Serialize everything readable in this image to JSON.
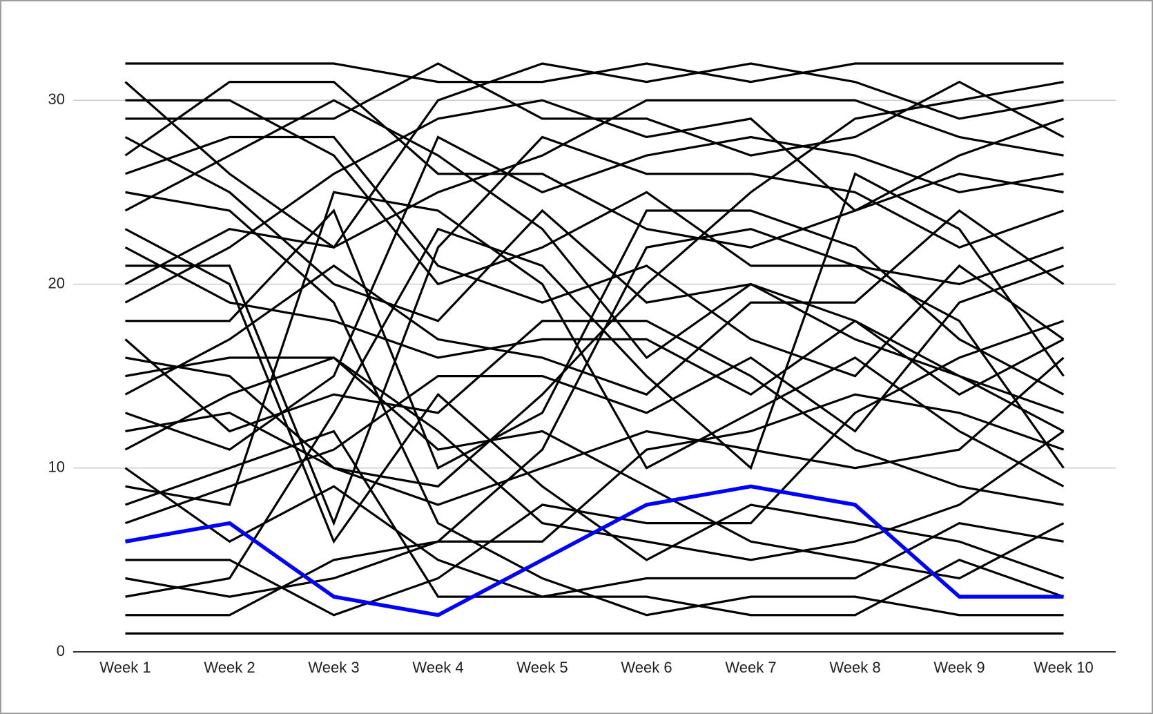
{
  "chart_data": {
    "type": "line",
    "categories": [
      "Week 1",
      "Week 2",
      "Week 3",
      "Week 4",
      "Week 5",
      "Week 6",
      "Week 7",
      "Week 8",
      "Week 9",
      "Week 10"
    ],
    "ylim": [
      0,
      32
    ],
    "yticks": [
      0,
      10,
      20,
      30
    ],
    "grid": true,
    "series": [
      {
        "color": "#000000",
        "values": [
          32,
          32,
          32,
          31,
          31,
          32,
          31,
          32,
          32,
          32
        ]
      },
      {
        "color": "#000000",
        "values": [
          31,
          26,
          22,
          30,
          32,
          31,
          32,
          31,
          29,
          30
        ]
      },
      {
        "color": "#000000",
        "values": [
          30,
          30,
          27,
          20,
          22,
          25,
          21,
          21,
          20,
          22
        ]
      },
      {
        "color": "#000000",
        "values": [
          29,
          29,
          29,
          32,
          29,
          29,
          27,
          28,
          31,
          28
        ]
      },
      {
        "color": "#000000",
        "values": [
          28,
          25,
          20,
          18,
          24,
          19,
          20,
          17,
          15,
          13
        ]
      },
      {
        "color": "#000000",
        "values": [
          27,
          31,
          31,
          26,
          26,
          23,
          22,
          24,
          27,
          29
        ]
      },
      {
        "color": "#000000",
        "values": [
          26,
          28,
          28,
          21,
          19,
          21,
          17,
          15,
          21,
          17
        ]
      },
      {
        "color": "#000000",
        "values": [
          25,
          24,
          19,
          7,
          4,
          2,
          3,
          3,
          2,
          2
        ]
      },
      {
        "color": "#000000",
        "values": [
          24,
          27,
          30,
          27,
          23,
          16,
          20,
          18,
          14,
          17
        ]
      },
      {
        "color": "#000000",
        "values": [
          23,
          20,
          6,
          14,
          9,
          5,
          8,
          7,
          6,
          4
        ]
      },
      {
        "color": "#000000",
        "values": [
          22,
          19,
          18,
          16,
          17,
          17,
          14,
          18,
          15,
          12
        ]
      },
      {
        "color": "#000000",
        "values": [
          21,
          21,
          7,
          22,
          28,
          26,
          26,
          25,
          22,
          24
        ]
      },
      {
        "color": "#000000",
        "values": [
          20,
          23,
          22,
          25,
          27,
          30,
          30,
          30,
          28,
          27
        ]
      },
      {
        "color": "#000000",
        "values": [
          19,
          22,
          26,
          29,
          30,
          28,
          29,
          24,
          26,
          25
        ]
      },
      {
        "color": "#000000",
        "values": [
          18,
          18,
          24,
          10,
          13,
          24,
          24,
          22,
          17,
          14
        ]
      },
      {
        "color": "#000000",
        "values": [
          17,
          12,
          14,
          13,
          18,
          18,
          15,
          11,
          9,
          8
        ]
      },
      {
        "color": "#000000",
        "values": [
          16,
          15,
          10,
          8,
          10,
          12,
          11,
          10,
          11,
          16
        ]
      },
      {
        "color": "#000000",
        "values": [
          15,
          16,
          16,
          11,
          12,
          9,
          6,
          5,
          4,
          7
        ]
      },
      {
        "color": "#000000",
        "values": [
          14,
          17,
          21,
          17,
          16,
          14,
          19,
          19,
          24,
          20
        ]
      },
      {
        "color": "#000000",
        "values": [
          13,
          11,
          15,
          28,
          25,
          27,
          28,
          27,
          25,
          26
        ]
      },
      {
        "color": "#000000",
        "values": [
          12,
          13,
          10,
          9,
          14,
          20,
          25,
          29,
          30,
          31
        ]
      },
      {
        "color": "#000000",
        "values": [
          11,
          14,
          16,
          12,
          7,
          6,
          5,
          6,
          8,
          12
        ]
      },
      {
        "color": "#000000",
        "values": [
          10,
          6,
          9,
          5,
          3,
          3,
          2,
          2,
          5,
          3
        ]
      },
      {
        "color": "#000000",
        "values": [
          9,
          8,
          25,
          24,
          20,
          10,
          13,
          16,
          12,
          9
        ]
      },
      {
        "color": "#000000",
        "values": [
          8,
          10,
          12,
          3,
          3,
          4,
          4,
          4,
          7,
          6
        ]
      },
      {
        "color": "#000000",
        "values": [
          7,
          9,
          11,
          15,
          15,
          13,
          16,
          12,
          19,
          21
        ]
      },
      {
        "color": "#000000",
        "values": [
          5,
          5,
          2,
          4,
          8,
          7,
          7,
          13,
          16,
          18
        ]
      },
      {
        "color": "#000000",
        "values": [
          4,
          3,
          4,
          6,
          6,
          11,
          12,
          14,
          13,
          11
        ]
      },
      {
        "color": "#000000",
        "values": [
          3,
          4,
          13,
          23,
          21,
          15,
          10,
          26,
          23,
          15
        ]
      },
      {
        "color": "#000000",
        "values": [
          2,
          2,
          5,
          6,
          11,
          22,
          23,
          21,
          18,
          10
        ]
      },
      {
        "color": "#000000",
        "values": [
          1,
          1,
          1,
          1,
          1,
          1,
          1,
          1,
          1,
          1
        ]
      },
      {
        "color": "#0000ff",
        "values": [
          6,
          7,
          3,
          2,
          5,
          8,
          9,
          8,
          3,
          3
        ]
      }
    ]
  }
}
